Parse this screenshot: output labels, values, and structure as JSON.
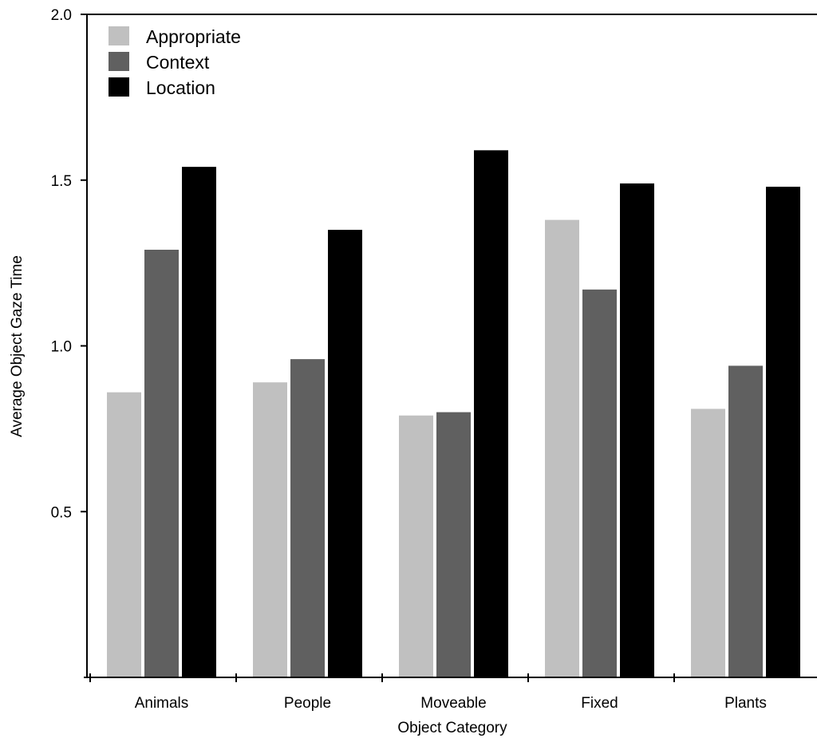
{
  "chart_data": {
    "type": "bar",
    "title": "",
    "xlabel": "Object Category",
    "ylabel": "Average Object Gaze Time",
    "categories": [
      "Animals",
      "People",
      "Moveable",
      "Fixed",
      "Plants"
    ],
    "series": [
      {
        "name": "Appropriate",
        "color": "#c0c0c0",
        "values": [
          0.86,
          0.89,
          0.79,
          1.38,
          0.81
        ]
      },
      {
        "name": "Context",
        "color": "#606060",
        "values": [
          1.29,
          0.96,
          0.8,
          1.17,
          0.94
        ]
      },
      {
        "name": "Location",
        "color": "#000000",
        "values": [
          1.54,
          1.35,
          1.59,
          1.49,
          1.48
        ]
      }
    ],
    "ylim": [
      0,
      2.0
    ],
    "yticks": [
      0.5,
      1.0,
      1.5,
      2.0
    ],
    "ytick_labels": [
      "0.5",
      "1.0",
      "1.5",
      "2.0"
    ],
    "grid": false,
    "legend_position": "top-left"
  }
}
